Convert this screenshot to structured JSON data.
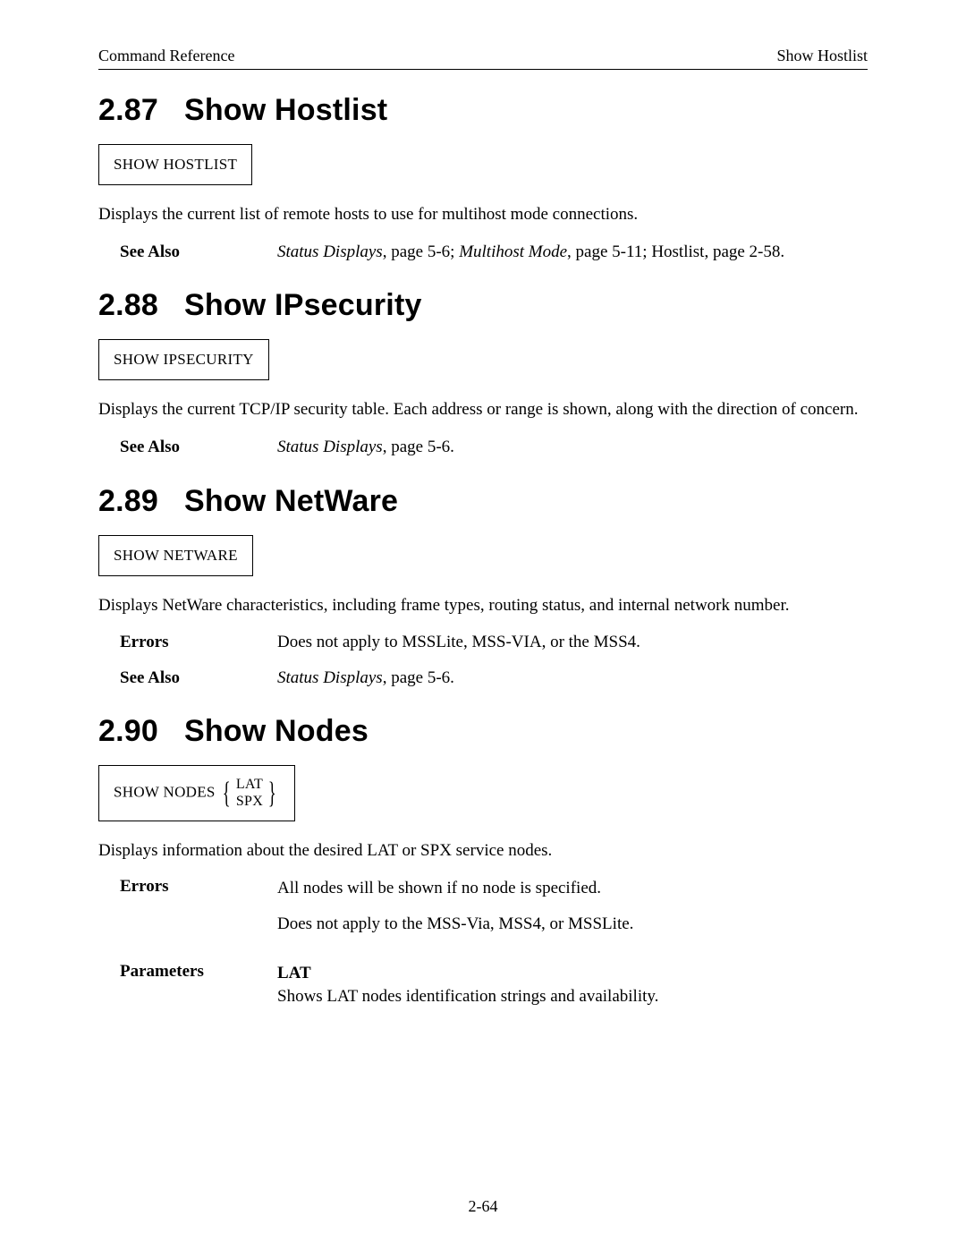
{
  "header": {
    "left": "Command Reference",
    "right": "Show Hostlist"
  },
  "sections": [
    {
      "number": "2.87",
      "title": "Show Hostlist",
      "cmd": "SHOW HOSTLIST",
      "desc": "Displays the current list of remote hosts to use for multihost mode connections.",
      "see_also_label": "See Also",
      "see_also_refs": [
        {
          "text": "Status Displays",
          "italic": true
        },
        {
          "text": ", page 5-6; "
        },
        {
          "text": "Multihost Mode",
          "italic": true
        },
        {
          "text": ", page 5-11; Hostlist, page 2-58."
        }
      ]
    },
    {
      "number": "2.88",
      "title": "Show IPsecurity",
      "cmd": "SHOW IPSECURITY",
      "desc": "Displays the current TCP/IP security table. Each address or range is shown, along with the direction of concern.",
      "see_also_label": "See Also",
      "see_also_refs": [
        {
          "text": "Status Displays",
          "italic": true
        },
        {
          "text": ", page 5-6."
        }
      ]
    },
    {
      "number": "2.89",
      "title": "Show NetWare",
      "cmd": "SHOW NETWARE",
      "desc": "Displays NetWare characteristics, including frame types, routing status, and internal network number.",
      "errors_label": "Errors",
      "errors_text": "Does not apply to MSSLite, MSS-VIA, or the MSS4.",
      "see_also_label": "See Also",
      "see_also_refs": [
        {
          "text": "Status Displays",
          "italic": true
        },
        {
          "text": ", page 5-6."
        }
      ]
    },
    {
      "number": "2.90",
      "title": "Show Nodes",
      "cmd_prefix": "SHOW NODES",
      "cmd_opts": [
        "LAT",
        "SPX"
      ],
      "desc": "Displays information about the desired LAT or SPX service nodes.",
      "errors_label": "Errors",
      "errors_lines": [
        "All nodes will be shown if no node is specified.",
        "Does not apply to the MSS-Via, MSS4, or MSSLite."
      ],
      "parameters_label": "Parameters",
      "parameters": [
        {
          "name": "LAT",
          "desc": "Shows LAT nodes identification strings and availability."
        }
      ]
    }
  ],
  "page_number": "2-64"
}
